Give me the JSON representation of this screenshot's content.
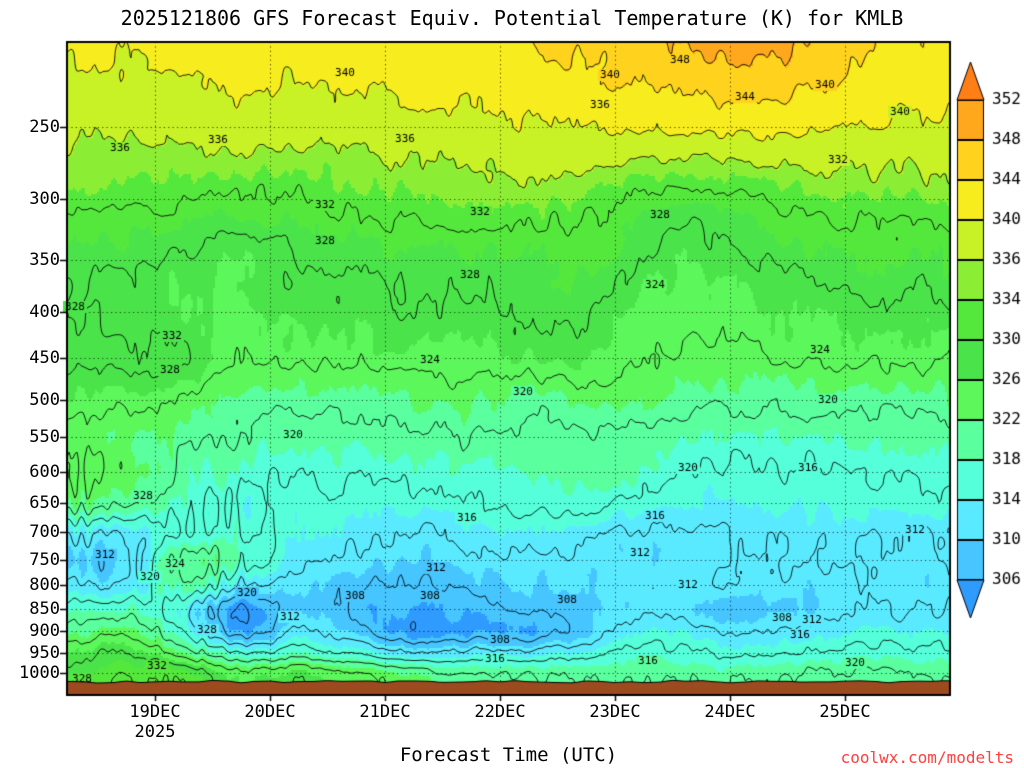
{
  "chart_data": {
    "type": "heatmap",
    "variant": "filled-contour time-height cross-section",
    "title": "2025121806 GFS Forecast Equiv. Potential Temperature (K) for KMLB",
    "xlabel": "Forecast Time (UTC)",
    "units": "K",
    "watermark": "coolwx.com/modelts",
    "watermark_color": "#ff4040",
    "background": "#ffffff",
    "frame_color": "#000000",
    "surface_color": "#9c4a1f",
    "xaxis": {
      "year_label": "2025",
      "range_days": [
        0,
        7.66
      ],
      "ticks": [
        {
          "label": "19DEC",
          "t": 0.75
        },
        {
          "label": "20DEC",
          "t": 1.75
        },
        {
          "label": "21DEC",
          "t": 2.75
        },
        {
          "label": "22DEC",
          "t": 3.75
        },
        {
          "label": "23DEC",
          "t": 4.75
        },
        {
          "label": "24DEC",
          "t": 5.75
        },
        {
          "label": "25DEC",
          "t": 6.75
        }
      ]
    },
    "yaxis": {
      "unit": "hPa",
      "scale": "log",
      "range": [
        201,
        1026
      ],
      "ticks": [
        250,
        300,
        350,
        400,
        450,
        500,
        550,
        600,
        650,
        700,
        750,
        800,
        850,
        900,
        950,
        1000
      ]
    },
    "colorbar": {
      "tick_labels_top_to_bottom": [
        "352",
        "348",
        "344",
        "340",
        "336",
        "334",
        "330",
        "326",
        "322",
        "318",
        "314",
        "310",
        "306"
      ],
      "levels_ascending": [
        306,
        310,
        314,
        318,
        322,
        326,
        330,
        334,
        336,
        340,
        344,
        348,
        352
      ],
      "colors_ascending": [
        "#46c5ff",
        "#5aeaff",
        "#55ffd9",
        "#5aff9e",
        "#5bf75b",
        "#4ae34a",
        "#55e83c",
        "#8cee34",
        "#c8f126",
        "#f6ec1e",
        "#ffd21e",
        "#ffa81e"
      ],
      "under_color": "#2f9bff",
      "over_color": "#ff7f16"
    },
    "contours": {
      "interval": 4,
      "color": "#000000",
      "levels": [
        304,
        308,
        312,
        316,
        320,
        324,
        328,
        332,
        336,
        340,
        344,
        348
      ],
      "labels": [
        [
          340,
          345,
          73
        ],
        [
          340,
          610,
          75
        ],
        [
          340,
          825,
          85
        ],
        [
          340,
          900,
          112
        ],
        [
          348,
          680,
          60
        ],
        [
          344,
          745,
          97
        ],
        [
          336,
          120,
          148
        ],
        [
          336,
          218,
          140
        ],
        [
          336,
          405,
          139
        ],
        [
          336,
          600,
          105
        ],
        [
          332,
          838,
          160
        ],
        [
          332,
          325,
          205
        ],
        [
          332,
          480,
          212
        ],
        [
          332,
          172,
          336
        ],
        [
          332,
          157,
          666
        ],
        [
          328,
          660,
          215
        ],
        [
          328,
          325,
          241
        ],
        [
          328,
          470,
          275
        ],
        [
          328,
          75,
          307
        ],
        [
          328,
          170,
          370
        ],
        [
          328,
          143,
          496
        ],
        [
          328,
          207,
          630
        ],
        [
          328,
          82,
          679
        ],
        [
          324,
          655,
          285
        ],
        [
          324,
          430,
          360
        ],
        [
          324,
          820,
          350
        ],
        [
          324,
          175,
          564
        ],
        [
          320,
          523,
          392
        ],
        [
          320,
          828,
          400
        ],
        [
          320,
          293,
          435
        ],
        [
          320,
          688,
          468
        ],
        [
          320,
          150,
          577
        ],
        [
          320,
          247,
          593
        ],
        [
          320,
          855,
          663
        ],
        [
          316,
          808,
          468
        ],
        [
          316,
          467,
          518
        ],
        [
          316,
          655,
          516
        ],
        [
          316,
          495,
          659
        ],
        [
          316,
          648,
          661
        ],
        [
          316,
          800,
          635
        ],
        [
          312,
          915,
          530
        ],
        [
          312,
          105,
          555
        ],
        [
          312,
          436,
          568
        ],
        [
          312,
          640,
          553
        ],
        [
          312,
          290,
          617
        ],
        [
          312,
          688,
          585
        ],
        [
          312,
          812,
          620
        ],
        [
          308,
          355,
          596
        ],
        [
          308,
          430,
          596
        ],
        [
          308,
          567,
          600
        ],
        [
          308,
          782,
          618
        ],
        [
          308,
          500,
          640
        ]
      ]
    },
    "grid": {
      "times_days": [
        0,
        0.5,
        1.0,
        1.5,
        2.0,
        2.5,
        3.0,
        3.5,
        4.0,
        4.5,
        5.0,
        5.5,
        6.0,
        6.5,
        7.0,
        7.66
      ],
      "pressures_hPa": [
        200,
        250,
        300,
        350,
        400,
        450,
        500,
        550,
        600,
        650,
        700,
        750,
        800,
        850,
        900,
        950,
        1000,
        1050
      ],
      "values": [
        [
          341,
          341,
          342,
          342,
          342,
          343,
          343,
          343,
          344,
          345,
          347,
          349,
          350,
          348,
          344,
          343
        ],
        [
          337,
          337,
          337.5,
          338,
          337.5,
          338,
          338.5,
          339,
          339.5,
          340,
          340.5,
          341,
          341,
          340.5,
          339.5,
          339
        ],
        [
          333,
          333,
          332.5,
          331.5,
          332,
          333,
          333.5,
          334,
          334.5,
          333.5,
          331.5,
          330.5,
          332,
          333.5,
          334,
          334
        ],
        [
          329,
          328.5,
          327.5,
          326.5,
          328,
          329,
          329.5,
          330,
          330,
          330.5,
          327.5,
          326.5,
          328,
          329.5,
          330,
          330
        ],
        [
          328,
          327,
          325.5,
          326,
          327,
          327,
          327.5,
          328,
          328.5,
          328.5,
          325.5,
          325,
          326,
          326.5,
          327,
          327
        ],
        [
          329,
          328.5,
          328,
          324,
          324.5,
          325,
          325,
          325.5,
          326,
          326.5,
          324,
          323.5,
          324,
          324.5,
          324.5,
          324
        ],
        [
          326,
          325,
          323.5,
          321.5,
          321.5,
          321.5,
          322,
          322.5,
          321,
          322,
          322.5,
          321,
          320.5,
          321,
          321,
          321.5
        ],
        [
          323,
          322,
          321,
          319.5,
          318.5,
          319,
          319.5,
          320,
          319,
          319.5,
          319,
          318,
          317.5,
          318,
          318.5,
          318.5
        ],
        [
          325,
          323,
          319,
          317.5,
          316.5,
          317,
          317,
          317.5,
          318.5,
          319.5,
          317.5,
          315.5,
          315.5,
          316,
          316.5,
          316.5
        ],
        [
          322,
          320,
          317,
          315.5,
          315,
          315,
          315,
          316,
          317,
          317,
          314.5,
          313.5,
          314,
          314.5,
          315,
          315
        ],
        [
          313,
          312.5,
          316,
          317,
          314,
          313,
          312,
          313,
          314,
          313,
          311.5,
          311.5,
          312.5,
          313,
          312.5,
          312
        ],
        [
          309,
          311,
          322,
          318,
          313,
          311,
          310,
          311,
          311.5,
          311,
          310.5,
          311,
          312,
          312.5,
          312,
          311.5
        ],
        [
          312,
          313,
          320,
          312,
          311,
          308.5,
          308,
          309,
          310,
          310,
          311.5,
          312,
          311,
          310.5,
          311,
          311
        ],
        [
          317,
          318,
          314,
          304,
          310,
          307,
          306,
          307,
          308,
          309,
          311,
          310,
          309,
          310,
          311.5,
          312
        ],
        [
          321,
          323,
          316,
          306,
          313,
          309,
          305,
          306,
          306,
          310,
          314,
          313,
          312,
          313,
          314,
          314
        ],
        [
          326,
          328,
          322,
          316,
          318,
          315,
          312,
          313,
          313,
          315,
          317,
          316,
          315.5,
          316,
          317,
          317
        ],
        [
          329,
          331,
          330,
          325,
          327,
          324,
          321,
          320,
          320,
          319,
          319.5,
          319,
          319,
          320,
          320.5,
          320
        ],
        [
          330,
          332,
          331,
          326,
          328,
          325,
          322,
          321,
          321,
          320,
          320.5,
          320,
          320,
          321,
          321.5,
          321
        ]
      ]
    }
  }
}
